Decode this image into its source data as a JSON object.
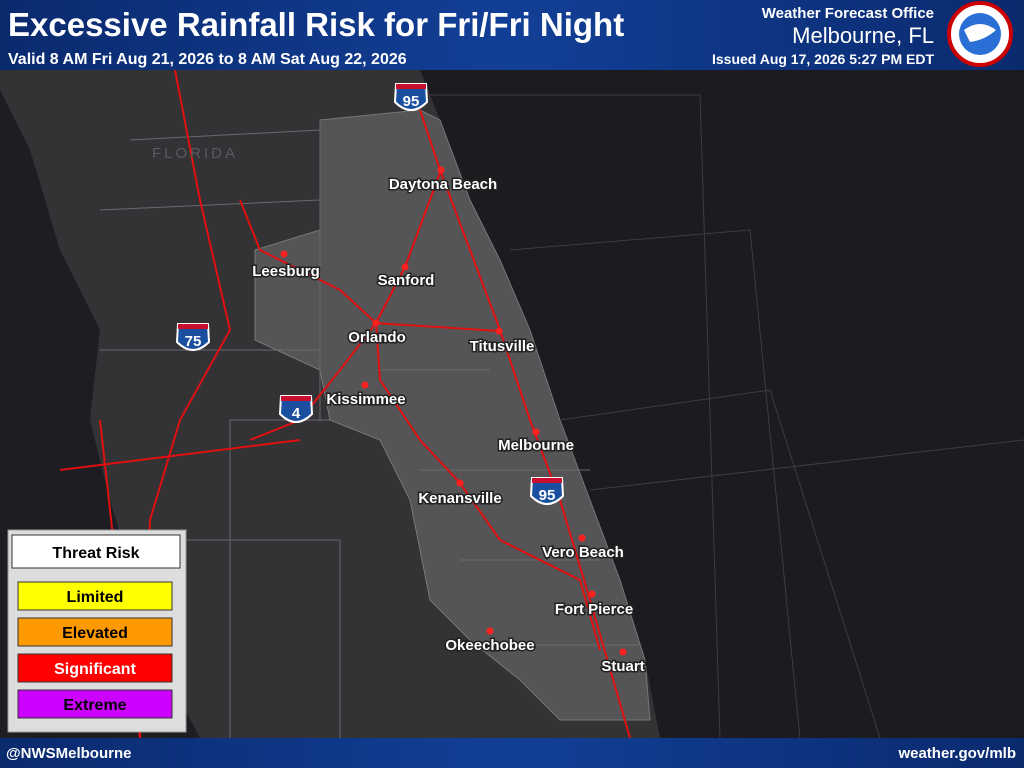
{
  "header": {
    "title": "Excessive Rainfall Risk for Fri/Fri Night",
    "subtitle": "Valid 8 AM Fri Aug 21, 2026 to 8 AM Sat Aug 22, 2026",
    "office": "Weather Forecast Office",
    "location": "Melbourne, FL",
    "issued": "Issued Aug 17, 2026 5:27 PM EDT"
  },
  "map": {
    "state_label": "FLORIDA",
    "cities": [
      "Daytona Beach",
      "Leesburg",
      "Sanford",
      "Orlando",
      "Titusville",
      "Kissimmee",
      "Melbourne",
      "Kenansville",
      "Vero Beach",
      "Fort Pierce",
      "Okeechobee",
      "Stuart"
    ],
    "shields": [
      "95",
      "75",
      "4",
      "95"
    ]
  },
  "legend": {
    "title": "Threat Risk",
    "items": [
      "Limited",
      "Elevated",
      "Significant",
      "Extreme"
    ]
  },
  "footer": {
    "left": "@NWSMelbourne",
    "right": "weather.gov/mlb"
  }
}
